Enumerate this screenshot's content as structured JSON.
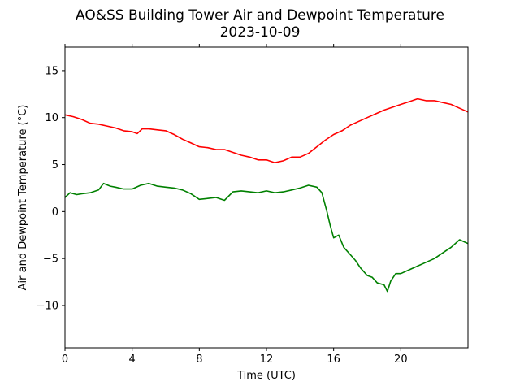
{
  "chart_data": {
    "type": "line",
    "title": "AO&SS Building Tower Air and Dewpoint Temperature",
    "subtitle": "2023-10-09",
    "xlabel": "Time (UTC)",
    "ylabel": "Air and Dewpoint Temperature (°C)",
    "xlim": [
      0,
      24
    ],
    "ylim": [
      -14.5,
      17.5
    ],
    "xticks": [
      0,
      4,
      8,
      12,
      16,
      20
    ],
    "yticks": [
      15,
      10,
      5,
      0,
      -5,
      -10
    ],
    "xtick_labels": [
      "0",
      "4",
      "8",
      "12",
      "16",
      "20"
    ],
    "ytick_labels": [
      "15",
      "10",
      "5",
      "0",
      "−5",
      "−10"
    ],
    "grid": false,
    "legend": "none",
    "series": [
      {
        "color": "#ff0000",
        "x": [
          0,
          0.5,
          1,
          1.5,
          2,
          2.5,
          3,
          3.5,
          4,
          4.3,
          4.6,
          5,
          5.5,
          6,
          6.5,
          7,
          7.5,
          8,
          8.5,
          9,
          9.5,
          10,
          10.5,
          11,
          11.5,
          12,
          12.5,
          13,
          13.5,
          14,
          14.5,
          15,
          15.5,
          16,
          16.5,
          17,
          17.5,
          18,
          18.5,
          19,
          19.5,
          20,
          20.5,
          21,
          21.5,
          22,
          22.5,
          23,
          23.5,
          24
        ],
        "values": [
          10.3,
          10.1,
          9.8,
          9.4,
          9.3,
          9.1,
          8.9,
          8.6,
          8.5,
          8.3,
          8.8,
          8.8,
          8.7,
          8.6,
          8.2,
          7.7,
          7.3,
          6.9,
          6.8,
          6.6,
          6.6,
          6.3,
          6.0,
          5.8,
          5.5,
          5.5,
          5.2,
          5.4,
          5.8,
          5.8,
          6.2,
          6.9,
          7.6,
          8.2,
          8.6,
          9.2,
          9.6,
          10.0,
          10.4,
          10.8,
          11.1,
          11.4,
          11.7,
          12.0,
          11.8,
          11.8,
          11.6,
          11.4,
          11.0,
          10.6
        ]
      },
      {
        "color": "#008000",
        "x": [
          0,
          0.3,
          0.7,
          1,
          1.5,
          2,
          2.3,
          2.7,
          3,
          3.5,
          4,
          4.5,
          5,
          5.5,
          6,
          6.5,
          7,
          7.5,
          8,
          8.5,
          9,
          9.5,
          10,
          10.5,
          11,
          11.5,
          12,
          12.5,
          13,
          13.5,
          14,
          14.5,
          15,
          15.3,
          15.6,
          15.8,
          16,
          16.3,
          16.6,
          17,
          17.3,
          17.6,
          18,
          18.3,
          18.6,
          19,
          19.2,
          19.4,
          19.7,
          20,
          20.5,
          21,
          21.5,
          22,
          22.5,
          23,
          23.5,
          24
        ],
        "values": [
          1.5,
          2.0,
          1.8,
          1.9,
          2.0,
          2.3,
          3.0,
          2.7,
          2.6,
          2.4,
          2.4,
          2.8,
          3.0,
          2.7,
          2.6,
          2.5,
          2.3,
          1.9,
          1.3,
          1.4,
          1.5,
          1.2,
          2.1,
          2.2,
          2.1,
          2.0,
          2.2,
          2.0,
          2.1,
          2.3,
          2.5,
          2.8,
          2.6,
          2.0,
          0.0,
          -1.5,
          -2.8,
          -2.5,
          -3.8,
          -4.6,
          -5.2,
          -6.0,
          -6.8,
          -7.0,
          -7.6,
          -7.8,
          -8.5,
          -7.4,
          -6.6,
          -6.6,
          -6.2,
          -5.8,
          -5.4,
          -5.0,
          -4.4,
          -3.8,
          -3.0,
          -3.4
        ]
      }
    ]
  }
}
